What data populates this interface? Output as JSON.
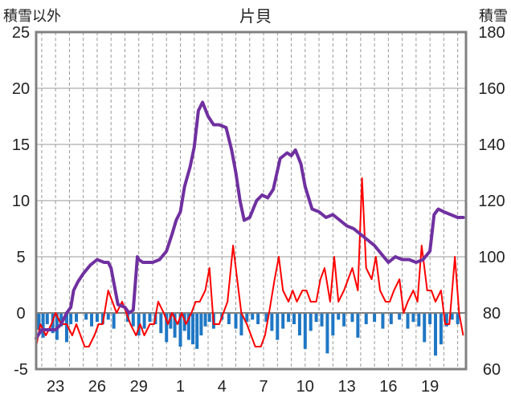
{
  "chart_data": {
    "type": "line",
    "title": "片貝",
    "ylabel_left": "積雪以外",
    "ylabel_right": "積雪",
    "y_left": {
      "min": -5,
      "max": 25,
      "ticks": [
        "25",
        "20",
        "15",
        "10",
        "5",
        "0",
        "-5"
      ]
    },
    "y_right": {
      "min": 60,
      "max": 180,
      "ticks": [
        "180",
        "160",
        "140",
        "120",
        "100",
        "80",
        "60"
      ]
    },
    "x_tick_labels": [
      "23",
      "26",
      "29",
      "1",
      "4",
      "7",
      "10",
      "13",
      "16",
      "19"
    ],
    "x_tick_positions_day": [
      2,
      5,
      8,
      11,
      14,
      17,
      20,
      23,
      26,
      29
    ],
    "x_range_day": [
      0.6,
      31.6
    ],
    "grid": true,
    "colors": {
      "snow_depth": "#7030a0",
      "temperature": "#ff0000",
      "precipitation": "#1f77c4",
      "zero_line": "#808080",
      "frame": "#808080",
      "grid": "#999999"
    },
    "snow_depth": {
      "x": [
        0.6,
        1.0,
        1.5,
        2.0,
        2.4,
        2.8,
        3.1,
        3.3,
        3.6,
        4.0,
        4.5,
        5.0,
        5.5,
        5.8,
        6.0,
        6.5,
        7.0,
        7.3,
        7.6,
        7.9,
        8.0,
        8.3,
        8.6,
        9.0,
        9.5,
        10.0,
        10.4,
        10.7,
        11.0,
        11.3,
        11.7,
        12.0,
        12.3,
        12.6,
        13.0,
        13.4,
        13.8,
        14.3,
        14.7,
        15.0,
        15.3,
        15.6,
        16.0,
        16.5,
        16.9,
        17.3,
        17.7,
        18.2,
        18.7,
        19.0,
        19.3,
        19.7,
        20.0,
        20.5,
        21.0,
        21.5,
        22.0,
        22.5,
        23.0,
        23.5,
        24.0,
        24.5,
        25.0,
        25.5,
        26.0,
        26.5,
        27.0,
        27.5,
        28.0,
        28.5,
        29.0,
        29.3,
        29.6,
        30.0,
        30.5,
        31.0,
        31.4
      ],
      "y": [
        71,
        74,
        74,
        74,
        76,
        80,
        82,
        88,
        91,
        94,
        97,
        99,
        98,
        98,
        96,
        83,
        82,
        80,
        81,
        100,
        99,
        98,
        98,
        98,
        99,
        102,
        108,
        113,
        116,
        125,
        132,
        139,
        152,
        155,
        150,
        147,
        147,
        146,
        138,
        130,
        120,
        113,
        114,
        120,
        122,
        121,
        124,
        135,
        137,
        136,
        138,
        133,
        125,
        117,
        116,
        114,
        115,
        113,
        111,
        110,
        108,
        106,
        104,
        101,
        98,
        100,
        99,
        99,
        98,
        99,
        102,
        115,
        117,
        116,
        115,
        114,
        114
      ]
    },
    "temperature": {
      "x": [
        0.6,
        0.9,
        1.3,
        1.7,
        2.0,
        2.4,
        2.8,
        3.2,
        3.5,
        3.8,
        4.1,
        4.4,
        4.8,
        5.1,
        5.4,
        5.8,
        6.1,
        6.4,
        6.8,
        7.1,
        7.4,
        7.8,
        8.1,
        8.4,
        8.8,
        9.1,
        9.4,
        9.8,
        10.1,
        10.4,
        10.8,
        11.1,
        11.4,
        11.8,
        12.1,
        12.4,
        12.8,
        13.1,
        13.4,
        13.8,
        14.1,
        14.4,
        14.8,
        15.1,
        15.4,
        15.8,
        16.1,
        16.4,
        16.8,
        17.1,
        17.4,
        17.8,
        18.1,
        18.4,
        18.8,
        19.1,
        19.4,
        19.8,
        20.1,
        20.4,
        20.8,
        21.1,
        21.4,
        21.8,
        22.1,
        22.4,
        22.8,
        23.1,
        23.4,
        23.8,
        24.1,
        24.4,
        24.8,
        25.1,
        25.4,
        25.8,
        26.1,
        26.4,
        26.8,
        27.1,
        27.4,
        27.8,
        28.1,
        28.4,
        28.8,
        29.1,
        29.4,
        29.8,
        30.1,
        30.4,
        30.8,
        31.1,
        31.4
      ],
      "y": [
        -3,
        -1,
        -2,
        -1,
        0,
        -1,
        -1,
        -2,
        -1,
        -2,
        -3,
        -3,
        -2,
        -1,
        -1,
        2,
        1,
        0,
        1,
        0,
        -1,
        -2,
        -1,
        -2,
        -1,
        -1,
        1,
        0,
        -1,
        0,
        -1,
        0,
        -1,
        0,
        1,
        1,
        2,
        4,
        -1,
        -1,
        0,
        1,
        6,
        3,
        0,
        -1,
        -2,
        -3,
        -3,
        -2,
        0,
        3,
        5,
        2,
        1,
        2,
        1,
        2,
        2,
        1,
        1,
        3,
        4,
        1,
        5,
        1,
        2,
        3,
        4,
        2,
        12,
        4,
        3,
        5,
        2,
        1,
        1,
        2,
        3,
        0,
        1,
        2,
        1,
        6,
        2,
        2,
        1,
        2,
        -1,
        -1,
        5,
        0,
        -2
      ]
    },
    "precipitation": {
      "x": [
        0.8,
        1.1,
        1.4,
        1.8,
        2.1,
        2.4,
        2.8,
        3.1,
        3.5,
        4.2,
        4.6,
        5.0,
        5.4,
        5.8,
        6.2,
        7.2,
        7.6,
        8.0,
        8.4,
        8.8,
        9.2,
        9.6,
        10.0,
        10.3,
        10.6,
        11.0,
        11.3,
        11.6,
        11.9,
        12.2,
        12.5,
        12.8,
        13.1,
        13.4,
        14.0,
        14.5,
        15.0,
        15.4,
        15.8,
        16.2,
        16.6,
        17.2,
        17.6,
        18.0,
        18.4,
        18.8,
        19.2,
        19.6,
        20.0,
        20.4,
        20.8,
        21.2,
        21.6,
        22.0,
        22.4,
        22.8,
        23.4,
        23.8,
        24.4,
        25.0,
        25.6,
        26.2,
        26.8,
        27.4,
        27.8,
        28.2,
        28.6,
        29.0,
        29.4,
        29.8,
        30.2,
        30.6,
        31.0
      ],
      "y": [
        1.5,
        2.2,
        1.0,
        1.8,
        2.4,
        1.2,
        2.6,
        1.0,
        0.8,
        0.6,
        1.2,
        0.8,
        1.0,
        0.6,
        1.4,
        0.8,
        1.2,
        2.0,
        1.4,
        0.8,
        1.0,
        1.8,
        2.6,
        1.4,
        2.2,
        3.0,
        1.6,
        2.4,
        2.8,
        3.2,
        2.0,
        1.2,
        0.8,
        1.4,
        0.6,
        1.0,
        1.4,
        2.0,
        0.8,
        0.6,
        1.0,
        0.8,
        1.6,
        2.4,
        1.4,
        0.8,
        1.0,
        2.0,
        3.2,
        1.6,
        0.8,
        1.2,
        3.6,
        2.0,
        0.6,
        1.2,
        0.8,
        2.2,
        1.0,
        0.8,
        1.4,
        1.0,
        0.6,
        1.4,
        0.8,
        1.2,
        2.6,
        1.0,
        3.8,
        2.8,
        1.2,
        0.6,
        1.0
      ]
    }
  }
}
